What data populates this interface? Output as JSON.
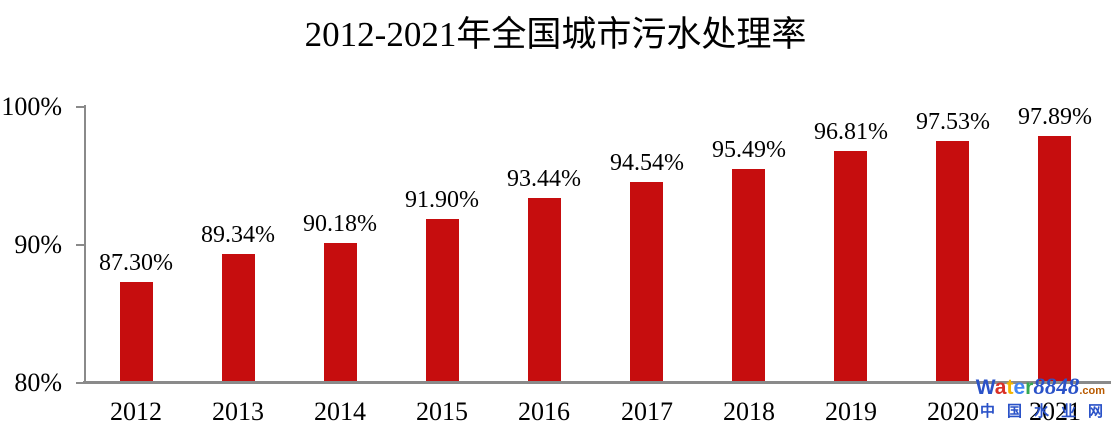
{
  "chart_data": {
    "type": "bar",
    "title": "2012-2021年全国城市污水处理率",
    "categories": [
      "2012",
      "2013",
      "2014",
      "2015",
      "2016",
      "2017",
      "2018",
      "2019",
      "2020",
      "2021"
    ],
    "values": [
      87.3,
      89.34,
      90.18,
      91.9,
      93.44,
      94.54,
      95.49,
      96.81,
      97.53,
      97.89
    ],
    "value_labels": [
      "87.30%",
      "89.34%",
      "90.18%",
      "91.90%",
      "93.44%",
      "94.54%",
      "95.49%",
      "96.81%",
      "97.53%",
      "97.89%"
    ],
    "xlabel": "",
    "ylabel": "",
    "ylim": [
      80,
      100
    ],
    "y_ticks": [
      {
        "label": "100%",
        "value": 100
      },
      {
        "label": "90%",
        "value": 90
      },
      {
        "label": "80%",
        "value": 80
      }
    ],
    "grid": false,
    "legend_position": "none",
    "bar_color": "#C60D0E",
    "axis_color": "#8A8A8A",
    "label_color": "#000000"
  },
  "watermark": {
    "brand_letters": [
      {
        "char": "W",
        "color": "#2A52C8"
      },
      {
        "char": "a",
        "color": "#D93025"
      },
      {
        "char": "t",
        "color": "#F4B400"
      },
      {
        "char": "e",
        "color": "#4285F4"
      },
      {
        "char": "r",
        "color": "#34A853"
      }
    ],
    "brand_number": {
      "text": "8848",
      "color": "#2A52C8"
    },
    "brand_tld": {
      "text": ".com",
      "color": "#B85A00"
    },
    "subtitle": {
      "text": "中国水业网",
      "color": "#2A52C8"
    }
  }
}
